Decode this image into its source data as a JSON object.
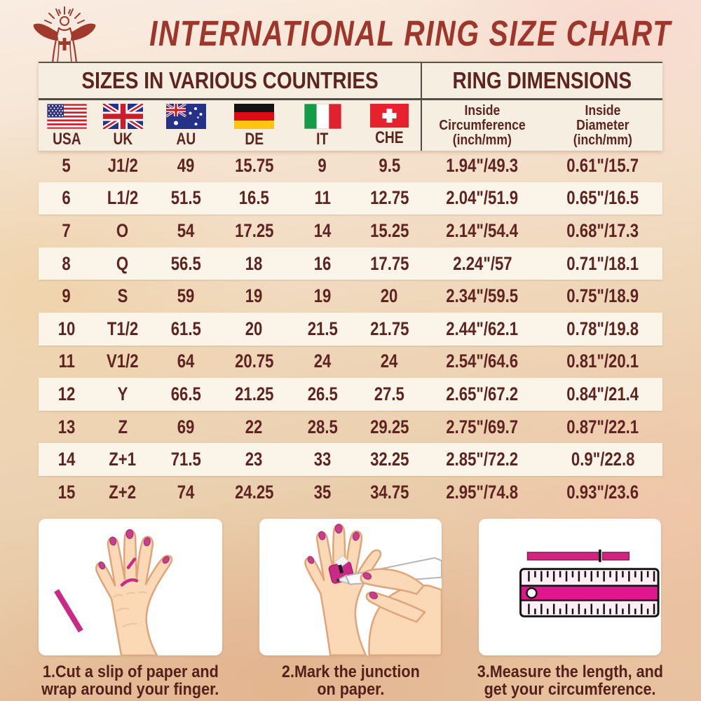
{
  "title": "INTERNATIONAL RING SIZE CHART",
  "logo": "jesus-with-rays-emblem",
  "section_headers": {
    "left": "SIZES IN VARIOUS COUNTRIES",
    "right": "RING DIMENSIONS"
  },
  "countries": [
    "USA",
    "UK",
    "AU",
    "DE",
    "IT",
    "CHE"
  ],
  "dims": {
    "circumference": [
      "Inside",
      "Circumference",
      "(inch/mm)"
    ],
    "diameter": [
      "Inside",
      "Diameter",
      "(inch/mm)"
    ]
  },
  "steps": [
    {
      "illustration": "hand-with-paper-strip",
      "caption": [
        "1.Cut a slip of paper and",
        "wrap around your finger."
      ]
    },
    {
      "illustration": "marking-junction-with-pen",
      "caption": [
        "2.Mark the junction",
        "on paper."
      ]
    },
    {
      "illustration": "ruler-measuring-strip",
      "caption": [
        "3.Measure the length, and",
        "get your circumference."
      ]
    }
  ],
  "colors": {
    "title_red": "#9e362b",
    "text_maroon": "#5e2421",
    "cream_panel": "#f6efe1",
    "row_band": "#fbf5e9",
    "divider": "#514c44",
    "accent_magenta": "#d2247f",
    "skin": "#fbd9b6",
    "skin_outline": "#dfa478"
  },
  "chart_data": {
    "type": "table",
    "title": "INTERNATIONAL RING SIZE CHART",
    "section_headers": [
      "SIZES IN VARIOUS COUNTRIES",
      "RING DIMENSIONS"
    ],
    "columns": [
      "USA",
      "UK",
      "AU",
      "DE",
      "IT",
      "CHE",
      "Inside Circumference (inch/mm)",
      "Inside Diameter (inch/mm)"
    ],
    "rows": [
      [
        "5",
        "J1/2",
        "49",
        "15.75",
        "9",
        "9.5",
        "1.94\"/49.3",
        "0.61\"/15.7"
      ],
      [
        "6",
        "L1/2",
        "51.5",
        "16.5",
        "11",
        "12.75",
        "2.04\"/51.9",
        "0.65\"/16.5"
      ],
      [
        "7",
        "O",
        "54",
        "17.25",
        "14",
        "15.25",
        "2.14\"/54.4",
        "0.68\"/17.3"
      ],
      [
        "8",
        "Q",
        "56.5",
        "18",
        "16",
        "17.75",
        "2.24\"/57",
        "0.71\"/18.1"
      ],
      [
        "9",
        "S",
        "59",
        "19",
        "19",
        "20",
        "2.34\"/59.5",
        "0.75\"/18.9"
      ],
      [
        "10",
        "T1/2",
        "61.5",
        "20",
        "21.5",
        "21.75",
        "2.44\"/62.1",
        "0.78\"/19.8"
      ],
      [
        "11",
        "V1/2",
        "64",
        "20.75",
        "24",
        "24",
        "2.54\"/64.6",
        "0.81\"/20.1"
      ],
      [
        "12",
        "Y",
        "66.5",
        "21.25",
        "26.5",
        "27.5",
        "2.65\"/67.2",
        "0.84\"/21.4"
      ],
      [
        "13",
        "Z",
        "69",
        "22",
        "28.5",
        "29.25",
        "2.75\"/69.7",
        "0.87\"/22.1"
      ],
      [
        "14",
        "Z+1",
        "71.5",
        "23",
        "33",
        "32.25",
        "2.85\"/72.2",
        "0.9\"/22.8"
      ],
      [
        "15",
        "Z+2",
        "74",
        "24.25",
        "35",
        "34.75",
        "2.95\"/74.8",
        "0.93\"/23.6"
      ]
    ]
  }
}
